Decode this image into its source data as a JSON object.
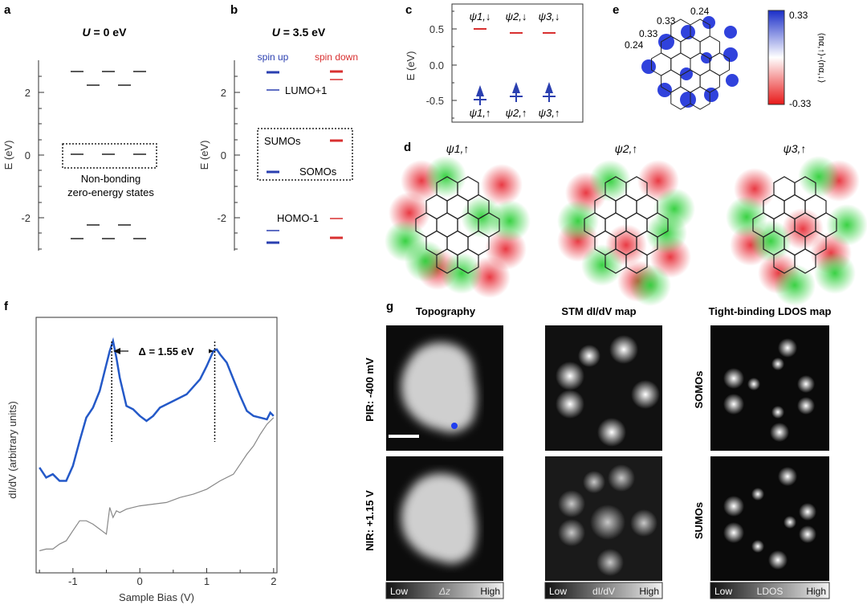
{
  "panels": {
    "a": {
      "letter": "a",
      "title_italic": "U",
      "title_rest": " = 0 eV",
      "yticks": [
        "2",
        "0",
        "-2"
      ],
      "ylabel": "E (eV)",
      "box_label_1": "Non-bonding",
      "box_label_2": "zero-energy states"
    },
    "b": {
      "letter": "b",
      "title_italic": "U",
      "title_rest": " = 3.5 eV",
      "yticks": [
        "2",
        "0",
        "-2"
      ],
      "ylabel": "E (eV)",
      "legend_up": "spin up",
      "legend_down": "spin down",
      "lumo": "LUMO+1",
      "sumos": "SUMOs",
      "somos": "SOMOs",
      "homo": "HOMO-1",
      "color_up": "#2a3fb0",
      "color_down": "#d83030"
    },
    "c": {
      "letter": "c",
      "yticks": [
        "0.5",
        "0.0",
        "-0.5"
      ],
      "ylabel": "E (eV)",
      "top_labels": [
        "ψ1,↓",
        "ψ2,↓",
        "ψ3,↓"
      ],
      "bottom_labels": [
        "ψ1,↑",
        "ψ2,↑",
        "ψ3,↑"
      ]
    },
    "d": {
      "letter": "d",
      "labels": [
        "ψ1,↑",
        "ψ2,↑",
        "ψ3,↑"
      ]
    },
    "e": {
      "letter": "e",
      "annotations": [
        "0.24",
        "0.33",
        "0.24",
        "0.33"
      ],
      "colorbar_max": "0.33",
      "colorbar_min": "-0.33",
      "colorbar_label": "⟨nα,↑⟩-⟨nα,↓⟩"
    },
    "f": {
      "letter": "f",
      "gap_label": "Δ = 1.55 eV",
      "ylabel": "dI/dV (arbitrary units)",
      "xlabel": "Sample Bias (V)",
      "xticks": [
        "-1",
        "0",
        "1",
        "2"
      ]
    },
    "g": {
      "letter": "g",
      "col_headers": [
        "Topography",
        "STM dI/dV map",
        "Tight-binding LDOS map"
      ],
      "row_labels": [
        "PIR: -400 mV",
        "NIR: +1.15 V"
      ],
      "right_labels": [
        "SOMOs",
        "SUMOs"
      ],
      "bars": [
        {
          "low": "Low",
          "mid": "Δz",
          "high": "High"
        },
        {
          "low": "Low",
          "mid": "dI/dV",
          "high": "High"
        },
        {
          "low": "Low",
          "mid": "LDOS",
          "high": "High"
        }
      ]
    }
  },
  "chart_data": [
    {
      "type": "line",
      "panel": "f",
      "xlabel": "Sample Bias (V)",
      "ylabel": "dI/dV (arbitrary units)",
      "xlim": [
        -1.55,
        2.05
      ],
      "series": [
        {
          "x": [
            -1.5,
            -1.4,
            -1.3,
            -1.2,
            -1.1,
            -1.0,
            -0.9,
            -0.8,
            -0.7,
            -0.6,
            -0.5,
            -0.45,
            -0.4,
            -0.35,
            -0.3,
            -0.2,
            -0.1,
            0.0,
            0.1,
            0.2,
            0.3,
            0.5,
            0.7,
            0.9,
            1.0,
            1.1,
            1.15,
            1.2,
            1.3,
            1.4,
            1.5,
            1.6,
            1.7,
            1.8,
            1.9,
            1.95,
            2.0
          ],
          "y": [
            0.32,
            0.26,
            0.28,
            0.24,
            0.24,
            0.33,
            0.48,
            0.62,
            0.68,
            0.78,
            0.94,
            1.02,
            1.08,
            0.98,
            0.86,
            0.69,
            0.67,
            0.63,
            0.6,
            0.63,
            0.68,
            0.72,
            0.76,
            0.85,
            0.93,
            1.02,
            1.03,
            1.0,
            0.95,
            0.85,
            0.75,
            0.66,
            0.63,
            0.62,
            0.61,
            0.65,
            0.63
          ]
        },
        {
          "x": [
            -1.5,
            -1.4,
            -1.3,
            -1.2,
            -1.1,
            -1.0,
            -0.9,
            -0.8,
            -0.7,
            -0.6,
            -0.5,
            -0.45,
            -0.4,
            -0.35,
            -0.3,
            -0.2,
            -0.1,
            0.0,
            0.2,
            0.4,
            0.6,
            0.8,
            1.0,
            1.2,
            1.4,
            1.5,
            1.6,
            1.7,
            1.8,
            1.9,
            2.0
          ],
          "y": [
            -0.18,
            -0.17,
            -0.17,
            -0.14,
            -0.12,
            -0.06,
            0.0,
            0.0,
            -0.02,
            -0.05,
            -0.08,
            0.08,
            0.02,
            0.06,
            0.05,
            0.07,
            0.08,
            0.09,
            0.1,
            0.11,
            0.14,
            0.16,
            0.19,
            0.24,
            0.28,
            0.34,
            0.4,
            0.45,
            0.52,
            0.58,
            0.62
          ]
        }
      ]
    }
  ]
}
